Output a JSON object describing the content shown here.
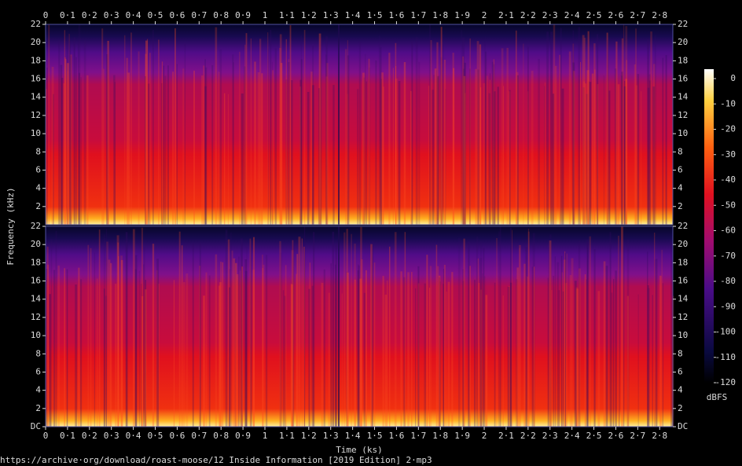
{
  "chart_data": {
    "type": "spectrogram",
    "xlabel": "Time (ks)",
    "ylabel": "Frequency (kHz)",
    "footer": "https://archive·org/download/roast-moose/12 Inside Information [2019 Edition] 2·mp3",
    "xlim": [
      0,
      2.86
    ],
    "xticks": [
      0,
      {
        "value": 0.1,
        "label": "0·1"
      },
      {
        "value": 0.2,
        "label": "0·2"
      },
      {
        "value": 0.3,
        "label": "0·3"
      },
      {
        "value": 0.4,
        "label": "0·4"
      },
      {
        "value": 0.5,
        "label": "0·5"
      },
      {
        "value": 0.6,
        "label": "0·6"
      },
      {
        "value": 0.7,
        "label": "0·7"
      },
      {
        "value": 0.8,
        "label": "0·8"
      },
      {
        "value": 0.9,
        "label": "0·9"
      },
      1,
      {
        "value": 1.1,
        "label": "1·1"
      },
      {
        "value": 1.2,
        "label": "1·2"
      },
      {
        "value": 1.3,
        "label": "1·3"
      },
      {
        "value": 1.4,
        "label": "1·4"
      },
      {
        "value": 1.5,
        "label": "1·5"
      },
      {
        "value": 1.6,
        "label": "1·6"
      },
      {
        "value": 1.7,
        "label": "1·7"
      },
      {
        "value": 1.8,
        "label": "1·8"
      },
      {
        "value": 1.9,
        "label": "1·9"
      },
      2,
      {
        "value": 2.1,
        "label": "2·1"
      },
      {
        "value": 2.2,
        "label": "2·2"
      },
      {
        "value": 2.3,
        "label": "2·3"
      },
      {
        "value": 2.4,
        "label": "2·4"
      },
      {
        "value": 2.5,
        "label": "2·5"
      },
      {
        "value": 2.6,
        "label": "2·6"
      },
      {
        "value": 2.7,
        "label": "2·7"
      },
      {
        "value": 2.8,
        "label": "2·8"
      }
    ],
    "channels": [
      {
        "ylim": [
          0,
          22
        ],
        "yticks": [
          2,
          4,
          6,
          8,
          10,
          12,
          14,
          16,
          18,
          20,
          22
        ]
      },
      {
        "ylim": [
          0,
          22
        ],
        "yticks": [
          {
            "value": 0,
            "label": "DC"
          },
          2,
          4,
          6,
          8,
          10,
          12,
          14,
          16,
          18,
          20,
          22
        ]
      }
    ],
    "colorbar": {
      "label": "dBFS",
      "lim": [
        -120,
        0
      ],
      "ticks": [
        0,
        -10,
        -20,
        -30,
        -40,
        -50,
        -60,
        -70,
        -80,
        -90,
        -100,
        -110,
        -120
      ]
    }
  }
}
